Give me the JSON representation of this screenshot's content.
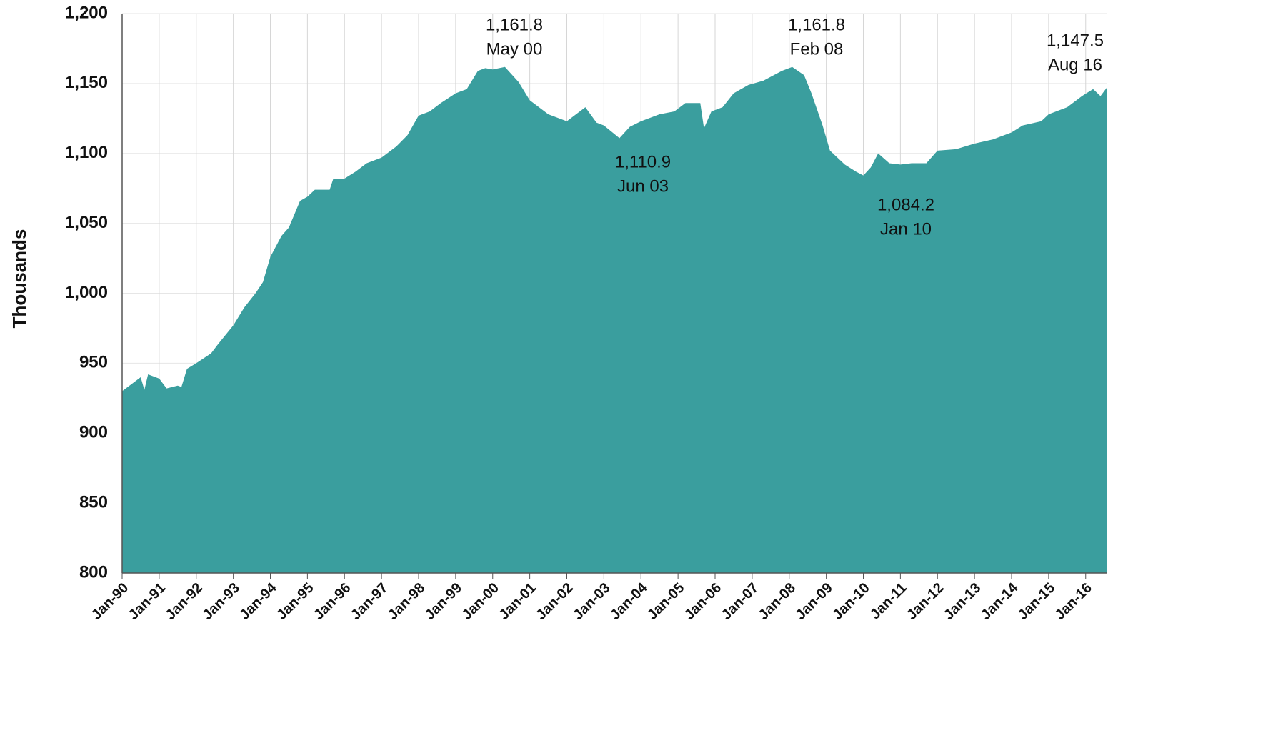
{
  "chart_data": {
    "type": "area",
    "y_label": "Thousands",
    "color": "#3a9e9e",
    "grid": true,
    "x": [
      1990.0,
      1990.5,
      1990.6,
      1990.7,
      1991.0,
      1991.2,
      1991.5,
      1991.6,
      1991.75,
      1992.0,
      1992.4,
      1992.6,
      1993.0,
      1993.3,
      1993.6,
      1993.8,
      1994.0,
      1994.3,
      1994.5,
      1994.8,
      1995.0,
      1995.2,
      1995.6,
      1995.7,
      1996.0,
      1996.3,
      1996.6,
      1997.0,
      1997.4,
      1997.7,
      1998.0,
      1998.3,
      1998.6,
      1999.0,
      1999.3,
      1999.6,
      1999.8,
      2000.0,
      2000.33,
      2000.7,
      2001.0,
      2001.5,
      2002.0,
      2002.5,
      2002.8,
      2003.0,
      2003.42,
      2003.7,
      2004.0,
      2004.5,
      2004.9,
      2005.2,
      2005.6,
      2005.7,
      2005.9,
      2006.2,
      2006.5,
      2006.9,
      2007.3,
      2007.8,
      2008.08,
      2008.4,
      2008.6,
      2008.9,
      2009.1,
      2009.5,
      2009.8,
      2010.0,
      2010.2,
      2010.4,
      2010.7,
      2011.0,
      2011.3,
      2011.7,
      2012.0,
      2012.5,
      2013.0,
      2013.5,
      2014.0,
      2014.3,
      2014.8,
      2015.0,
      2015.5,
      2015.9,
      2016.2,
      2016.4,
      2016.583
    ],
    "values": [
      930,
      940,
      931,
      942,
      939,
      932,
      934,
      933,
      946,
      950,
      957,
      964,
      977,
      990,
      1000,
      1008,
      1026,
      1041,
      1047,
      1066,
      1069,
      1074,
      1074,
      1082,
      1082,
      1087,
      1093,
      1097,
      1105,
      1113,
      1127,
      1130,
      1136,
      1143,
      1146,
      1159,
      1161,
      1160,
      1161.8,
      1151,
      1138,
      1128,
      1123,
      1133,
      1122,
      1120,
      1110.9,
      1119,
      1123,
      1128,
      1130,
      1136,
      1136,
      1118,
      1130,
      1133,
      1143,
      1149,
      1152,
      1159,
      1161.8,
      1156,
      1143,
      1120,
      1102,
      1092,
      1087,
      1084.2,
      1090,
      1100,
      1093,
      1092,
      1093,
      1093,
      1102,
      1103,
      1107,
      1110,
      1115,
      1120,
      1123,
      1128,
      1133,
      1141,
      1146,
      1141,
      1147.5
    ],
    "xlim": [
      1990.0,
      2016.583
    ],
    "xticks": [
      {
        "value": 1990,
        "label": "Jan-90"
      },
      {
        "value": 1991,
        "label": "Jan-91"
      },
      {
        "value": 1992,
        "label": "Jan-92"
      },
      {
        "value": 1993,
        "label": "Jan-93"
      },
      {
        "value": 1994,
        "label": "Jan-94"
      },
      {
        "value": 1995,
        "label": "Jan-95"
      },
      {
        "value": 1996,
        "label": "Jan-96"
      },
      {
        "value": 1997,
        "label": "Jan-97"
      },
      {
        "value": 1998,
        "label": "Jan-98"
      },
      {
        "value": 1999,
        "label": "Jan-99"
      },
      {
        "value": 2000,
        "label": "Jan-00"
      },
      {
        "value": 2001,
        "label": "Jan-01"
      },
      {
        "value": 2002,
        "label": "Jan-02"
      },
      {
        "value": 2003,
        "label": "Jan-03"
      },
      {
        "value": 2004,
        "label": "Jan-04"
      },
      {
        "value": 2005,
        "label": "Jan-05"
      },
      {
        "value": 2006,
        "label": "Jan-06"
      },
      {
        "value": 2007,
        "label": "Jan-07"
      },
      {
        "value": 2008,
        "label": "Jan-08"
      },
      {
        "value": 2009,
        "label": "Jan-09"
      },
      {
        "value": 2010,
        "label": "Jan-10"
      },
      {
        "value": 2011,
        "label": "Jan-11"
      },
      {
        "value": 2012,
        "label": "Jan-12"
      },
      {
        "value": 2013,
        "label": "Jan-13"
      },
      {
        "value": 2014,
        "label": "Jan-14"
      },
      {
        "value": 2015,
        "label": "Jan-15"
      },
      {
        "value": 2016,
        "label": "Jan-16"
      }
    ],
    "ylim": [
      800,
      1200
    ],
    "yticks": [
      800,
      850,
      900,
      950,
      {
        "value": 1000,
        "label": "1,000"
      },
      {
        "value": 1050,
        "label": "1,050"
      },
      {
        "value": 1100,
        "label": "1,100"
      },
      {
        "value": 1150,
        "label": "1,150"
      },
      {
        "value": 1200,
        "label": "1,200"
      }
    ],
    "annotations": [
      {
        "label": "1,161.8",
        "date": "May 00"
      },
      {
        "label": "1,110.9",
        "date": "Jun 03"
      },
      {
        "label": "1,161.8",
        "date": "Feb 08"
      },
      {
        "label": "1,084.2",
        "date": "Jan 10"
      },
      {
        "label": "1,147.5",
        "date": "Aug 16"
      }
    ]
  }
}
